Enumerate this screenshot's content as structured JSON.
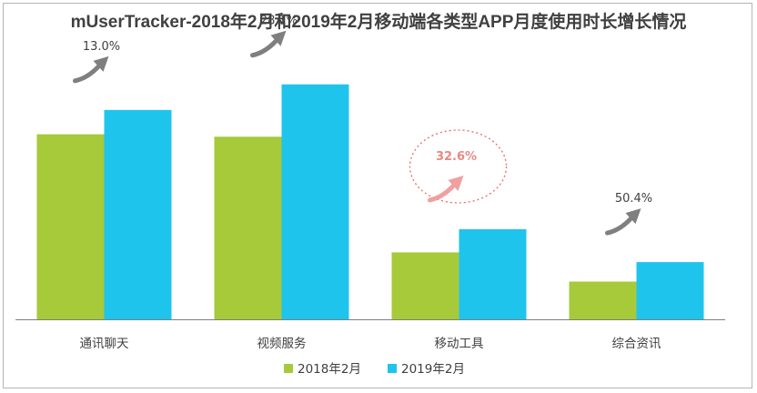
{
  "chart_data": {
    "type": "bar",
    "title": "mUserTracker-2018年2月和2019年2月移动端各类型APP月度使用时长增长情况",
    "categories": [
      "通讯聊天",
      "视频服务",
      "移动工具",
      "综合资讯"
    ],
    "series": [
      {
        "name": "2018年2月",
        "values": [
          152,
          150,
          55,
          31
        ]
      },
      {
        "name": "2019年2月",
        "values": [
          172,
          193,
          74,
          47
        ]
      }
    ],
    "growth_labels": [
      "13.0%",
      "28.1%",
      "32.6%",
      "50.4%"
    ],
    "highlighted_category": "移动工具",
    "ylim": [
      0,
      210
    ],
    "y_axis_shown": false,
    "grid": false,
    "legend_position": "bottom",
    "xlabel": "",
    "ylabel": ""
  },
  "colors": {
    "series_2018": "#a6ca39",
    "series_2019": "#1fc4ec",
    "arrow": "#7f7f7f",
    "highlight_arrow": "#f0a0a0",
    "highlight_text": "#e88a82",
    "highlight_ellipse": "#e96b6b",
    "axis": "#7f7f7f",
    "text": "#404040"
  }
}
